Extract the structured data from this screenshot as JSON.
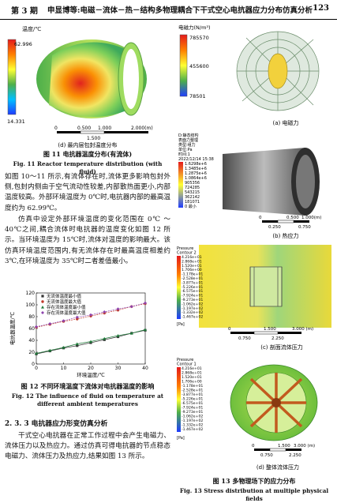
{
  "header": {
    "issue": "第 3 期",
    "title": "申显博等:电磁－流体－热－结构多物理耦合下干式空心电抗器应力分布仿真分析",
    "page": "123"
  },
  "fig11": {
    "legend_title": "温度/℃",
    "max": "62.996",
    "min": "14.331",
    "scale": [
      "0",
      "0.500",
      "1.000",
      "2.000(m)"
    ],
    "scale_sub": "1.500",
    "sub": "(d) 最内层包封温度分布",
    "cap_cn": "图 11    电抗器温度分布(有流体)",
    "cap_en": "Fig. 11    Reactor temperature distribution (with fluid)"
  },
  "para1": "如图 10～11 所示,有流体存在时,流体更多影响包封外侧,包封内侧由于空气流动性较差,内部散热面更小,内部温度较高。外部环境温度为 0℃时,电抗器内部的最高温度约为 62.99℃。",
  "para2": "仿真中设定外部环境温度的变化范围在 0℃ ～40℃之间,耦合流体时电抗器的温度变化如图 12 所示。当环境温度为 15℃时,流体对温度的影响最大。该仿真环境温度范围内,有无流体存在时最高温度相差约 3℃,在环境温度为 35℃时二者差值最小。",
  "fig12": {
    "cap_cn": "图 12    不同环境温度下流体对电抗器温度的影响",
    "cap_en": "Fig. 12    The influence of fluid on temperature at different ambient temperatures"
  },
  "section": "2. 3. 3    电抗器应力形变仿真分析",
  "para3": "干式空心电抗器在正常工作过程中会产生电磁力、流体压力以及热应力。通过仿真可得电抗器的节点稳态电磁力、流体压力及热应力,结果如图 13 所示。",
  "fig13": {
    "a_legend_title": "电磁力(N/m³)",
    "a_max": "785570",
    "a_mid": "455600",
    "a_min": "78501",
    "a_sub": "(a) 电磁力",
    "b_legend": [
      "D:静态结构",
      "表面力整理",
      "类型:组力",
      "单位:Pa",
      "时间:1",
      "2022/12/14 15:38"
    ],
    "b_values": [
      "1.6298e+6",
      "1.3485e+6",
      "1.2875e+6",
      "1.0864e+6",
      "905356",
      "724285",
      "543215",
      "362142",
      "181071",
      "0 最小"
    ],
    "b_scale": [
      "0",
      "0.500",
      "1.000(m)"
    ],
    "b_scale_sub": [
      "0.250",
      "0.750"
    ],
    "b_sub": "(b) 热应力",
    "c_legend": [
      "Pressure",
      "Contour 2"
    ],
    "c_values": [
      "4.216e+01",
      "2.868e+01",
      "1.520e+01",
      "1.706e+00",
      "-1.178e+01",
      "-2.528e+01",
      "-3.877e+01",
      "-5.226e+01",
      "-6.575e+01",
      "-7.924e+01",
      "-9.273e+01",
      "-1.062e+02",
      "-1.197e+02",
      "-1.332e+02",
      "-1.467e+02"
    ],
    "c_unit": "[Pa]",
    "c_scale": [
      "0",
      "1.500",
      "3.000 (m)"
    ],
    "c_scale_sub": [
      "0.750",
      "2.250"
    ],
    "c_sub": "(c) 剖面流体压力",
    "d_legend": [
      "Pressure",
      "Contour 1"
    ],
    "d_values": [
      "4.216e+01",
      "2.868e+01",
      "1.520e+01",
      "1.706e+00",
      "-1.178e+01",
      "-2.528e+01",
      "-3.877e+01",
      "-5.226e+01",
      "-6.575e+01",
      "-7.924e+01",
      "-9.273e+01",
      "-1.062e+02",
      "-1.197e+02",
      "-1.332e+02",
      "-1.467e+02"
    ],
    "d_unit": "[Pa]",
    "d_scale": [
      "0",
      "1.500",
      "3.000 (m)"
    ],
    "d_scale_sub": [
      "0.750",
      "2.250"
    ],
    "d_sub": "(d) 整体流体压力",
    "cap_cn": "图 13    多物理场下的应力分布",
    "cap_en": "Fig. 13    Stress distribution at multiple physical fields"
  },
  "chart_data": {
    "type": "line",
    "xlabel": "环境温度/℃",
    "ylabel": "电抗器温度/℃",
    "xlim": [
      0,
      40
    ],
    "ylim": [
      0,
      120
    ],
    "xticks": [
      "0",
      "10",
      "20",
      "30",
      "40"
    ],
    "yticks": [
      "0",
      "20",
      "40",
      "60",
      "80",
      "100",
      "120"
    ],
    "legend": "top-left",
    "grid": false,
    "x": [
      0,
      5,
      10,
      15,
      20,
      25,
      30,
      35,
      40
    ],
    "series": [
      {
        "name": "无流体温度最小值",
        "marker": "square",
        "color": "#333333",
        "values": [
          17,
          22,
          27,
          31,
          36,
          41,
          46,
          52,
          57
        ]
      },
      {
        "name": "无流体温度最大值",
        "marker": "circle",
        "color": "#c0392b",
        "values": [
          62,
          67,
          72,
          76,
          81,
          86,
          91,
          97,
          102
        ]
      },
      {
        "name": "存在流体温度最小值",
        "marker": "triangle",
        "color": "#1f7a3a",
        "values": [
          18,
          23,
          28,
          34,
          38,
          43,
          48,
          52,
          58
        ]
      },
      {
        "name": "存在流体温度最大值",
        "marker": "diamond",
        "color": "#8e44ad",
        "values": [
          63,
          68,
          73,
          79,
          83,
          88,
          93,
          97,
          103
        ]
      }
    ]
  }
}
